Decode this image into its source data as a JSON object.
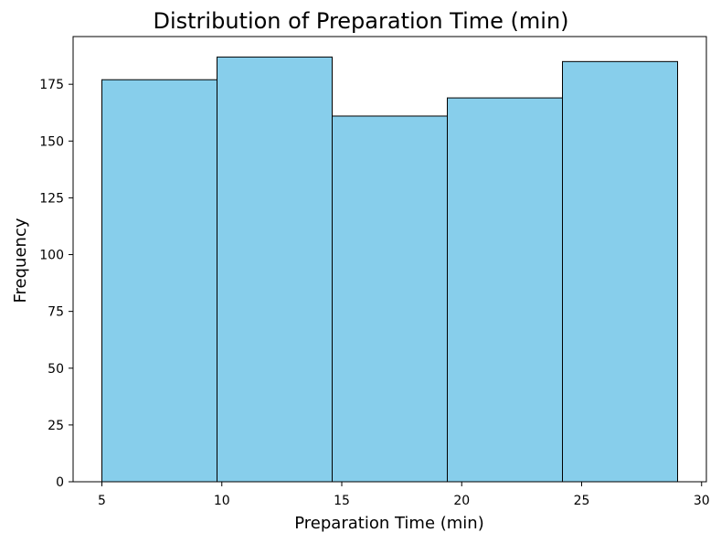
{
  "chart_data": {
    "type": "bar",
    "title": "Distribution of Preparation Time (min)",
    "xlabel": "Preparation Time (min)",
    "ylabel": "Frequency",
    "bins": [
      {
        "start": 5.0,
        "end": 9.8,
        "value": 177
      },
      {
        "start": 9.8,
        "end": 14.6,
        "value": 187
      },
      {
        "start": 14.6,
        "end": 19.4,
        "value": 161
      },
      {
        "start": 19.4,
        "end": 24.2,
        "value": 169
      },
      {
        "start": 24.2,
        "end": 29.0,
        "value": 185
      }
    ],
    "xlim": [
      3.8,
      30.2
    ],
    "ylim": [
      0,
      196
    ],
    "xticks": [
      5,
      10,
      15,
      20,
      25,
      30
    ],
    "yticks": [
      0,
      25,
      50,
      75,
      100,
      125,
      150,
      175
    ],
    "grid": false,
    "legend": "none",
    "colors": {
      "bar_fill": "#87ceeb",
      "bar_edge": "#000000"
    }
  }
}
